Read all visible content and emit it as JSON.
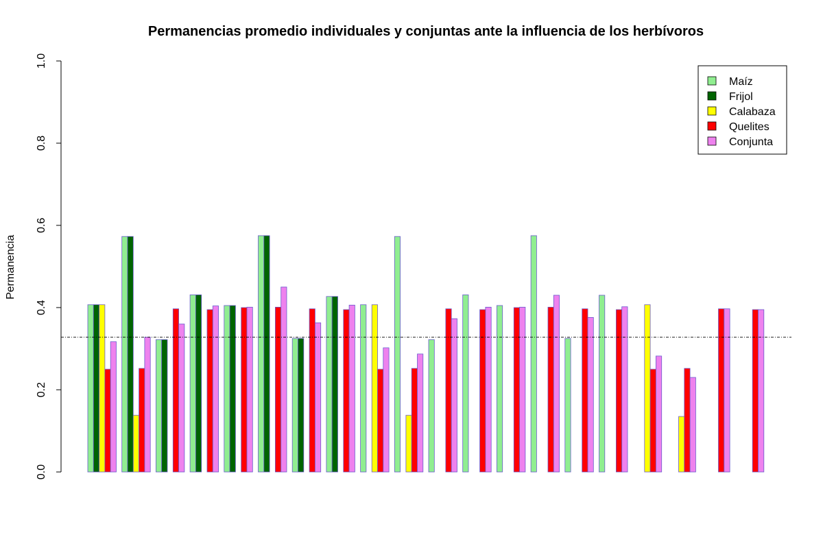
{
  "chart_data": {
    "type": "bar",
    "title": "Permanencias promedio individuales y conjuntas ante la influencia de los herbívoros",
    "xlabel": "",
    "ylabel": "Permanencia",
    "ylim": [
      0,
      1
    ],
    "yticks": [
      "0.0",
      "0.2",
      "0.4",
      "0.6",
      "0.8",
      "1.0"
    ],
    "reference_line": 0.328,
    "legend_position": "top-right",
    "grid": false,
    "bar_border_color": "#6a5acd",
    "series": [
      {
        "name": "Maíz",
        "color": "#90ee90",
        "values": [
          0.407,
          0.573,
          0.322,
          0.431,
          0.405,
          0.575,
          0.325,
          0.427,
          0.407,
          0.573,
          0.322,
          0.431,
          0.405,
          0.575,
          0.325,
          0.43,
          0,
          0,
          0,
          0
        ]
      },
      {
        "name": "Frijol",
        "color": "#006400",
        "values": [
          0.407,
          0.573,
          0.322,
          0.431,
          0.405,
          0.575,
          0.325,
          0.427,
          0,
          0,
          0,
          0,
          0,
          0,
          0,
          0,
          0,
          0,
          0,
          0
        ]
      },
      {
        "name": "Calabaza",
        "color": "#ffff00",
        "values": [
          0.407,
          0.138,
          0,
          0,
          0,
          0,
          0,
          0,
          0.407,
          0.138,
          0,
          0,
          0,
          0,
          0,
          0,
          0.407,
          0.135,
          0,
          0
        ]
      },
      {
        "name": "Quelites",
        "color": "#ff0000",
        "values": [
          0.25,
          0.252,
          0.397,
          0.395,
          0.4,
          0.401,
          0.397,
          0.395,
          0.25,
          0.252,
          0.397,
          0.395,
          0.4,
          0.401,
          0.397,
          0.395,
          0.25,
          0.252,
          0.397,
          0.395
        ]
      },
      {
        "name": "Conjunta",
        "color": "#ee82ee",
        "values": [
          0.317,
          0.328,
          0.36,
          0.404,
          0.401,
          0.45,
          0.363,
          0.406,
          0.302,
          0.287,
          0.373,
          0.401,
          0.401,
          0.43,
          0.376,
          0.402,
          0.282,
          0.23,
          0.397,
          0.395
        ]
      }
    ]
  }
}
